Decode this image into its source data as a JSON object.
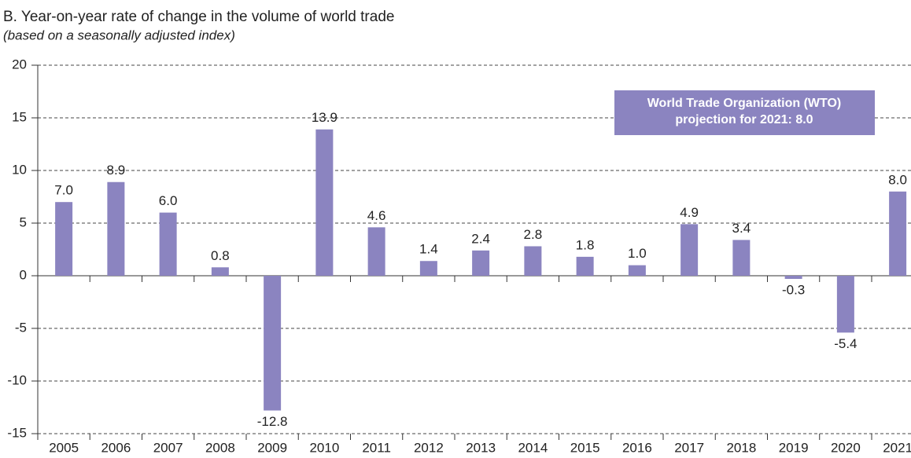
{
  "chart_data": {
    "type": "bar",
    "title": "B. Year-on-year rate of change in the volume of world trade",
    "subtitle": "(based on a seasonally adjusted index)",
    "categories": [
      "2005",
      "2006",
      "2007",
      "2008",
      "2009",
      "2010",
      "2011",
      "2012",
      "2013",
      "2014",
      "2015",
      "2016",
      "2017",
      "2018",
      "2019",
      "2020",
      "2021"
    ],
    "values": [
      7.0,
      8.9,
      6.0,
      0.8,
      -12.8,
      13.9,
      4.6,
      1.4,
      2.4,
      2.8,
      1.8,
      1.0,
      4.9,
      3.4,
      -0.3,
      -5.4,
      8.0
    ],
    "value_labels": [
      "7.0",
      "8.9",
      "6.0",
      "0.8",
      "-12.8",
      "13.9",
      "4.6",
      "1.4",
      "2.4",
      "2.8",
      "1.8",
      "1.0",
      "4.9",
      "3.4",
      "-0.3",
      "-5.4",
      "8.0"
    ],
    "color": "#8b84c0",
    "ylim": [
      -15,
      20
    ],
    "yticks": [
      -15,
      -10,
      -5,
      0,
      5,
      10,
      15,
      20
    ],
    "grid": true,
    "annotation": [
      "World Trade Organization (WTO)",
      "projection for 2021: 8.0"
    ]
  }
}
